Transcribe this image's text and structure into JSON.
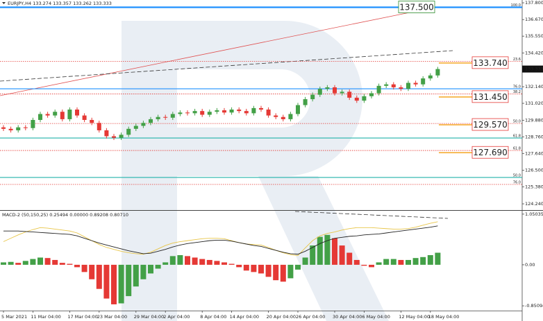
{
  "chart_data": [
    {
      "type": "candlestick",
      "title": "EURJPY,H4 133.274 133.357 133.262 133.333",
      "categories": [
        "5 Mar 2021",
        null,
        null,
        null,
        "11 Mar 04:00",
        null,
        null,
        null,
        null,
        "17 Mar 04:00",
        null,
        null,
        null,
        "23 Mar 04:00",
        null,
        null,
        null,
        null,
        "29 Mar 04:00",
        null,
        null,
        null,
        "2 Apr 04:00",
        null,
        null,
        null,
        null,
        "8 Apr 04:00",
        null,
        null,
        null,
        "14 Apr 04:00",
        null,
        null,
        null,
        null,
        "20 Apr 04:00",
        null,
        null,
        null,
        "26 Apr 04:00",
        null,
        null,
        null,
        null,
        "30 Apr 04:00",
        null,
        null,
        null,
        "6 May 04:00",
        null,
        null,
        null,
        null,
        "12 May 04:00",
        null,
        null,
        null,
        "18 May 04:00",
        null
      ],
      "open": [
        129.4,
        129.3,
        129.2,
        129.4,
        129.35,
        129.9,
        130.3,
        130.2,
        130.45,
        129.95,
        130.6,
        130.2,
        129.9,
        129.7,
        129.2,
        128.8,
        128.7,
        128.9,
        129.3,
        129.5,
        129.7,
        129.95,
        130.1,
        130.05,
        130.3,
        130.4,
        130.35,
        130.5,
        130.25,
        130.45,
        130.55,
        130.4,
        130.6,
        130.5,
        130.35,
        130.7,
        130.6,
        130.2,
        130.1,
        129.95,
        130.3,
        130.9,
        131.3,
        131.6,
        132.0,
        132.1,
        131.7,
        131.8,
        131.4,
        131.2,
        131.5,
        131.7,
        132.2,
        132.3,
        132.1,
        132.0,
        132.4,
        132.3,
        132.7,
        132.9
      ],
      "high": [
        129.55,
        129.45,
        129.55,
        129.55,
        130.05,
        130.45,
        130.45,
        130.6,
        130.6,
        130.75,
        130.75,
        130.35,
        130.05,
        129.85,
        129.35,
        128.95,
        129.05,
        129.45,
        129.65,
        129.85,
        130.1,
        130.25,
        130.25,
        130.45,
        130.55,
        130.55,
        130.65,
        130.65,
        130.6,
        130.7,
        130.7,
        130.75,
        130.75,
        130.65,
        130.85,
        130.85,
        130.75,
        130.35,
        130.25,
        130.45,
        131.05,
        131.45,
        131.75,
        132.15,
        132.25,
        132.25,
        131.95,
        131.95,
        131.55,
        131.65,
        131.85,
        132.35,
        132.45,
        132.45,
        132.25,
        132.55,
        132.55,
        132.85,
        133.05,
        133.48
      ],
      "low": [
        129.15,
        129.05,
        129.05,
        129.2,
        129.2,
        129.75,
        130.05,
        130.05,
        129.8,
        129.8,
        130.05,
        129.75,
        129.55,
        129.05,
        128.65,
        128.55,
        128.55,
        128.75,
        129.15,
        129.35,
        129.55,
        129.8,
        129.9,
        129.9,
        130.15,
        130.2,
        130.2,
        130.1,
        130.1,
        130.3,
        130.25,
        130.25,
        130.35,
        130.2,
        130.2,
        130.45,
        130.05,
        129.95,
        129.8,
        129.8,
        130.15,
        130.75,
        131.15,
        131.45,
        131.85,
        131.55,
        131.55,
        131.25,
        131.05,
        131.05,
        131.35,
        131.55,
        132.05,
        131.95,
        131.85,
        131.85,
        132.15,
        132.15,
        132.55,
        132.75
      ],
      "close": [
        129.3,
        129.2,
        129.4,
        129.35,
        129.9,
        130.3,
        130.2,
        130.45,
        129.95,
        130.6,
        130.2,
        129.9,
        129.7,
        129.2,
        128.8,
        128.7,
        128.9,
        129.3,
        129.5,
        129.7,
        129.95,
        130.1,
        130.05,
        130.3,
        130.4,
        130.35,
        130.5,
        130.25,
        130.45,
        130.55,
        130.4,
        130.6,
        130.5,
        130.35,
        130.7,
        130.6,
        130.2,
        130.1,
        129.95,
        130.3,
        130.9,
        131.3,
        131.6,
        132.0,
        132.1,
        131.7,
        131.8,
        131.4,
        131.2,
        131.5,
        131.7,
        132.2,
        132.3,
        132.1,
        132.0,
        132.4,
        132.3,
        132.7,
        132.9,
        133.333
      ],
      "up_color": "#43a047",
      "down_color": "#e53935",
      "ylim": [
        123.82,
        137.99
      ],
      "yticks": [
        {
          "value": 137.8,
          "label": "137.800"
        },
        {
          "value": 136.67,
          "label": "136.670"
        },
        {
          "value": 135.55,
          "label": "135.550"
        },
        {
          "value": 134.42,
          "label": "134.420"
        },
        {
          "value": 132.14,
          "label": "132.140"
        },
        {
          "value": 131.02,
          "label": "131.020"
        },
        {
          "value": 129.88,
          "label": "129.880"
        },
        {
          "value": 128.76,
          "label": "128.760"
        },
        {
          "value": 127.64,
          "label": "127.640"
        },
        {
          "value": 126.5,
          "label": "126.500"
        },
        {
          "value": 125.38,
          "label": "125.380"
        },
        {
          "value": 124.24,
          "label": "124.240"
        }
      ],
      "last_price": {
        "value": 133.333,
        "label": "133.333"
      },
      "fib_levels": [
        {
          "value": 137.5,
          "label": "100.0",
          "color": "#1e90ff",
          "style": "solid"
        },
        {
          "value": 133.85,
          "label": "23.6",
          "color": "#e53935",
          "style": "dotted"
        },
        {
          "value": 132.0,
          "label": "76.0",
          "color": "#1e90ff",
          "style": "solid"
        },
        {
          "value": 131.65,
          "label": "38.2",
          "color": "#e53935",
          "style": "dotted"
        },
        {
          "value": 129.66,
          "label": "50.0",
          "color": "#e53935",
          "style": "dotted"
        },
        {
          "value": 128.68,
          "label": "61.8",
          "color": "#20b2aa",
          "style": "solid"
        },
        {
          "value": 127.84,
          "label": "61.8",
          "color": "#e53935",
          "style": "dotted"
        },
        {
          "value": 126.02,
          "label": "50.0",
          "color": "#20b2aa",
          "style": "solid"
        },
        {
          "value": 125.55,
          "label": "76.0",
          "color": "#e53935",
          "style": "dotted"
        }
      ],
      "levels": [
        {
          "value": 137.5,
          "label": "137.500",
          "color": "#2e8b2e"
        },
        {
          "value": 133.74,
          "label": "133.740",
          "color": "#e53935"
        },
        {
          "value": 131.45,
          "label": "131.450",
          "color": "#e53935"
        },
        {
          "value": 129.57,
          "label": "129.570",
          "color": "#e53935"
        },
        {
          "value": 127.69,
          "label": "127.690",
          "color": "#e53935"
        }
      ]
    },
    {
      "type": "macd",
      "title": "MACD-2 (50,150,25) 0.25494 0.00000 0.89208 0.80710",
      "histogram": [
        0.05,
        0.06,
        0.04,
        0.08,
        0.12,
        0.15,
        0.14,
        0.1,
        0.04,
        0.02,
        -0.05,
        -0.15,
        -0.3,
        -0.5,
        -0.7,
        -0.82,
        -0.8,
        -0.65,
        -0.45,
        -0.3,
        -0.18,
        -0.08,
        0.05,
        0.18,
        0.2,
        0.18,
        0.15,
        0.12,
        0.1,
        0.08,
        0.05,
        0.02,
        -0.05,
        -0.12,
        -0.15,
        -0.18,
        -0.25,
        -0.32,
        -0.35,
        -0.28,
        -0.1,
        0.15,
        0.4,
        0.58,
        0.62,
        0.55,
        0.4,
        0.25,
        0.1,
        -0.02,
        -0.05,
        0.05,
        0.12,
        0.12,
        0.1,
        0.1,
        0.14,
        0.16,
        0.2,
        0.25
      ],
      "up_color": "#43a047",
      "down_color": "#e53935",
      "series": [
        {
          "color": "#e8c547",
          "values": [
            0.48,
            0.55,
            0.62,
            0.68,
            0.73,
            0.77,
            0.76,
            0.74,
            0.72,
            0.7,
            0.66,
            0.58,
            0.5,
            0.42,
            0.36,
            0.32,
            0.28,
            0.25,
            0.23,
            0.22,
            0.26,
            0.33,
            0.4,
            0.45,
            0.48,
            0.5,
            0.52,
            0.54,
            0.55,
            0.55,
            0.54,
            0.5,
            0.46,
            0.43,
            0.42,
            0.41,
            0.36,
            0.3,
            0.25,
            0.21,
            0.19,
            0.35,
            0.5,
            0.6,
            0.65,
            0.68,
            0.72,
            0.75,
            0.77,
            0.77,
            0.77,
            0.76,
            0.75,
            0.74,
            0.74,
            0.75,
            0.78,
            0.82,
            0.86,
            0.89208
          ]
        },
        {
          "color": "#222222",
          "values": [
            0.7,
            0.7,
            0.7,
            0.69,
            0.68,
            0.67,
            0.66,
            0.65,
            0.64,
            0.63,
            0.6,
            0.55,
            0.5,
            0.45,
            0.41,
            0.37,
            0.33,
            0.29,
            0.26,
            0.23,
            0.24,
            0.28,
            0.32,
            0.37,
            0.41,
            0.44,
            0.46,
            0.48,
            0.5,
            0.51,
            0.51,
            0.49,
            0.46,
            0.43,
            0.4,
            0.38,
            0.34,
            0.3,
            0.26,
            0.23,
            0.22,
            0.28,
            0.36,
            0.44,
            0.5,
            0.55,
            0.57,
            0.59,
            0.6,
            0.62,
            0.63,
            0.64,
            0.66,
            0.68,
            0.7,
            0.72,
            0.74,
            0.76,
            0.78,
            0.8071
          ]
        }
      ],
      "ylim": [
        -0.95,
        1.12
      ],
      "yticks": [
        {
          "value": 1.05035,
          "label": "1.05035"
        },
        {
          "value": 0,
          "label": "0.00"
        },
        {
          "value": -0.85094,
          "label": "-0.85094"
        }
      ]
    }
  ]
}
